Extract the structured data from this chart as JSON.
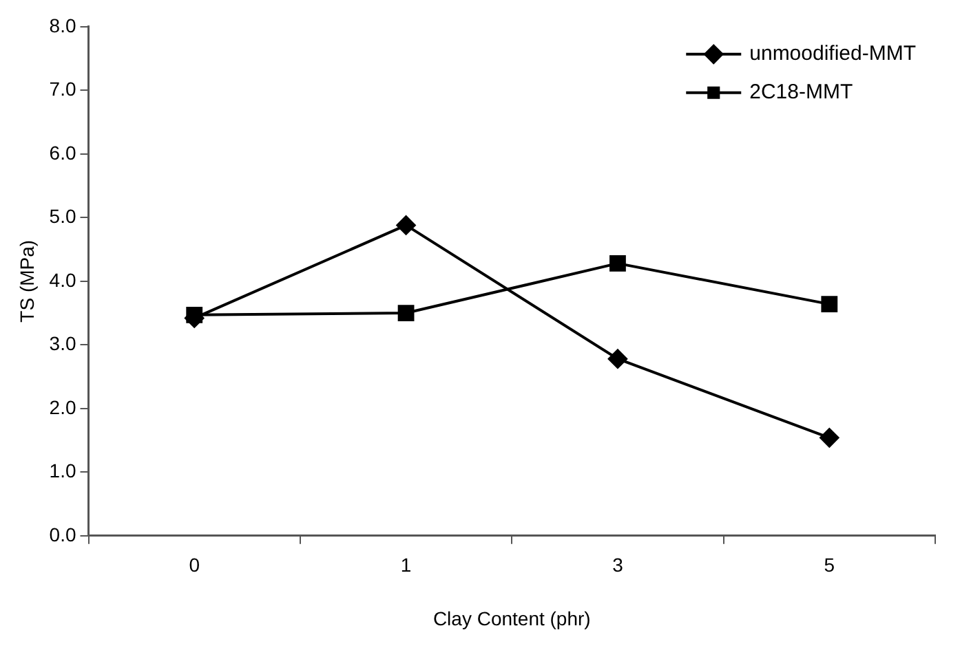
{
  "chart_data": {
    "type": "line",
    "xlabel": "Clay Content (phr)",
    "ylabel": "TS (MPa)",
    "categories": [
      "0",
      "1",
      "3",
      "5"
    ],
    "series": [
      {
        "name": "unmoodified-MMT",
        "color": "#000000",
        "marker": "diamond",
        "values": [
          3.42,
          4.88,
          2.78,
          1.54
        ]
      },
      {
        "name": "2C18-MMT",
        "color": "#000000",
        "marker": "square",
        "values": [
          3.47,
          3.5,
          4.28,
          3.64
        ]
      }
    ],
    "ylim": [
      0,
      8
    ],
    "yticks": [
      {
        "value": 0,
        "label": "0.0"
      },
      {
        "value": 1,
        "label": "1.0"
      },
      {
        "value": 2,
        "label": "2.0"
      },
      {
        "value": 3,
        "label": "3.0"
      },
      {
        "value": 4,
        "label": "4.0"
      },
      {
        "value": 5,
        "label": "5.0"
      },
      {
        "value": 6,
        "label": "6.0"
      },
      {
        "value": 7,
        "label": "7.0"
      },
      {
        "value": 8,
        "label": "8.0"
      }
    ],
    "grid": false,
    "legend": "top right",
    "line_style": "solid"
  }
}
